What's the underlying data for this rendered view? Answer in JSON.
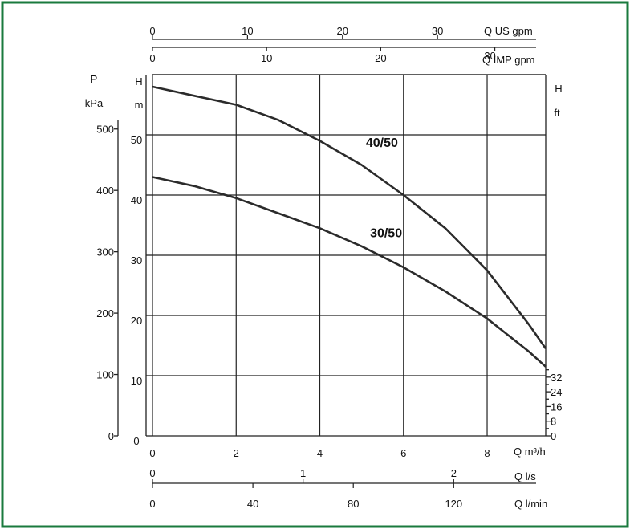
{
  "chart_data": {
    "type": "line",
    "colors": {
      "border": "#1a7a3e",
      "curve": "#2b2b2b",
      "grid": "#222222"
    },
    "x": {
      "label": "Q m³/h",
      "range": [
        0,
        9.4
      ],
      "ticks": [
        "0",
        "2",
        "4",
        "6",
        "8"
      ]
    },
    "x_secondary": [
      {
        "label": "Q US gpm",
        "ticks": [
          "0",
          "10",
          "20",
          "30"
        ]
      },
      {
        "label": "Q IMP gpm",
        "ticks": [
          "0",
          "10",
          "20",
          "30"
        ]
      },
      {
        "label": "Q l/s",
        "ticks": [
          "0",
          "1",
          "2"
        ]
      },
      {
        "label": "Q l/min",
        "ticks": [
          "0",
          "40",
          "80",
          "120"
        ]
      }
    ],
    "y": {
      "label_top": "H",
      "label_bottom": "m",
      "range": [
        0,
        60
      ],
      "ticks": [
        "0",
        "10",
        "20",
        "30",
        "40",
        "50"
      ]
    },
    "y_secondary": [
      {
        "label_top": "P",
        "label_bottom": "kPa",
        "ticks": [
          "0",
          "100",
          "200",
          "300",
          "400",
          "500"
        ]
      },
      {
        "label_top": "H",
        "label_bottom": "ft",
        "ticks": [
          "0",
          "8",
          "16",
          "24",
          "32"
        ]
      }
    ],
    "series": [
      {
        "name": "40/50",
        "points": [
          [
            0,
            58
          ],
          [
            1,
            56.5
          ],
          [
            2,
            55
          ],
          [
            3,
            52.5
          ],
          [
            4,
            49
          ],
          [
            5,
            45
          ],
          [
            6,
            40
          ],
          [
            7,
            34.5
          ],
          [
            8,
            27.5
          ],
          [
            9,
            18.5
          ],
          [
            9.4,
            14.5
          ]
        ]
      },
      {
        "name": "30/50",
        "points": [
          [
            0,
            43
          ],
          [
            1,
            41.5
          ],
          [
            2,
            39.5
          ],
          [
            3,
            37
          ],
          [
            4,
            34.5
          ],
          [
            5,
            31.5
          ],
          [
            6,
            28
          ],
          [
            7,
            24
          ],
          [
            8,
            19.5
          ],
          [
            9,
            14
          ],
          [
            9.4,
            11.5
          ]
        ]
      }
    ]
  }
}
